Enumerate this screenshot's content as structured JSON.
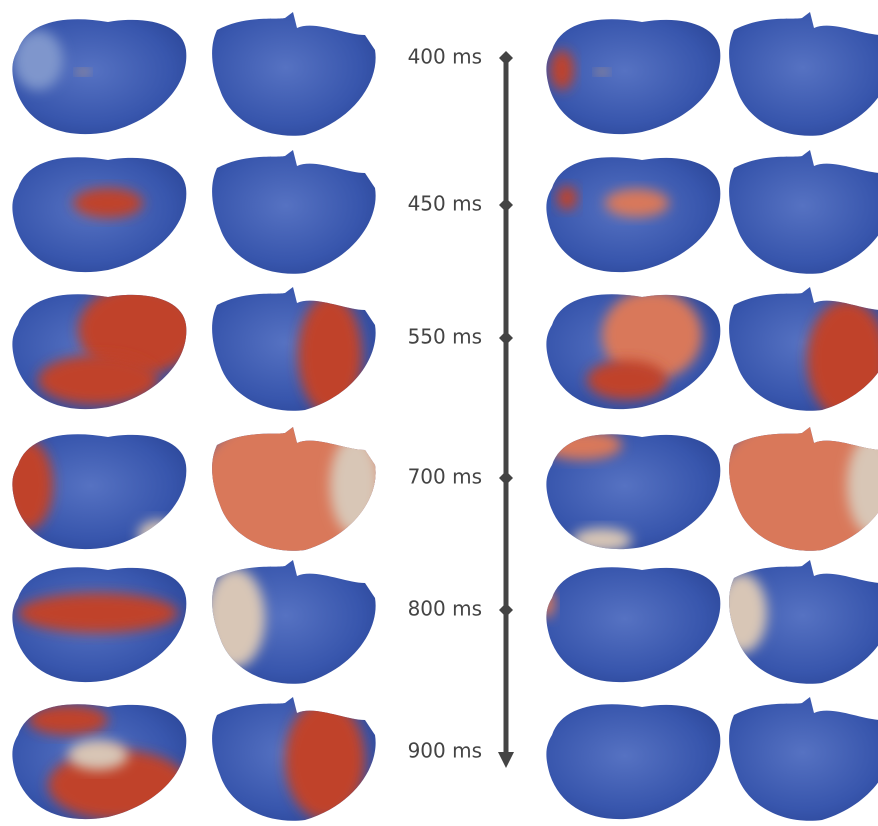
{
  "timeline": {
    "labels": [
      "400 ms",
      "450 ms",
      "550 ms",
      "700 ms",
      "800 ms",
      "900 ms"
    ]
  }
}
